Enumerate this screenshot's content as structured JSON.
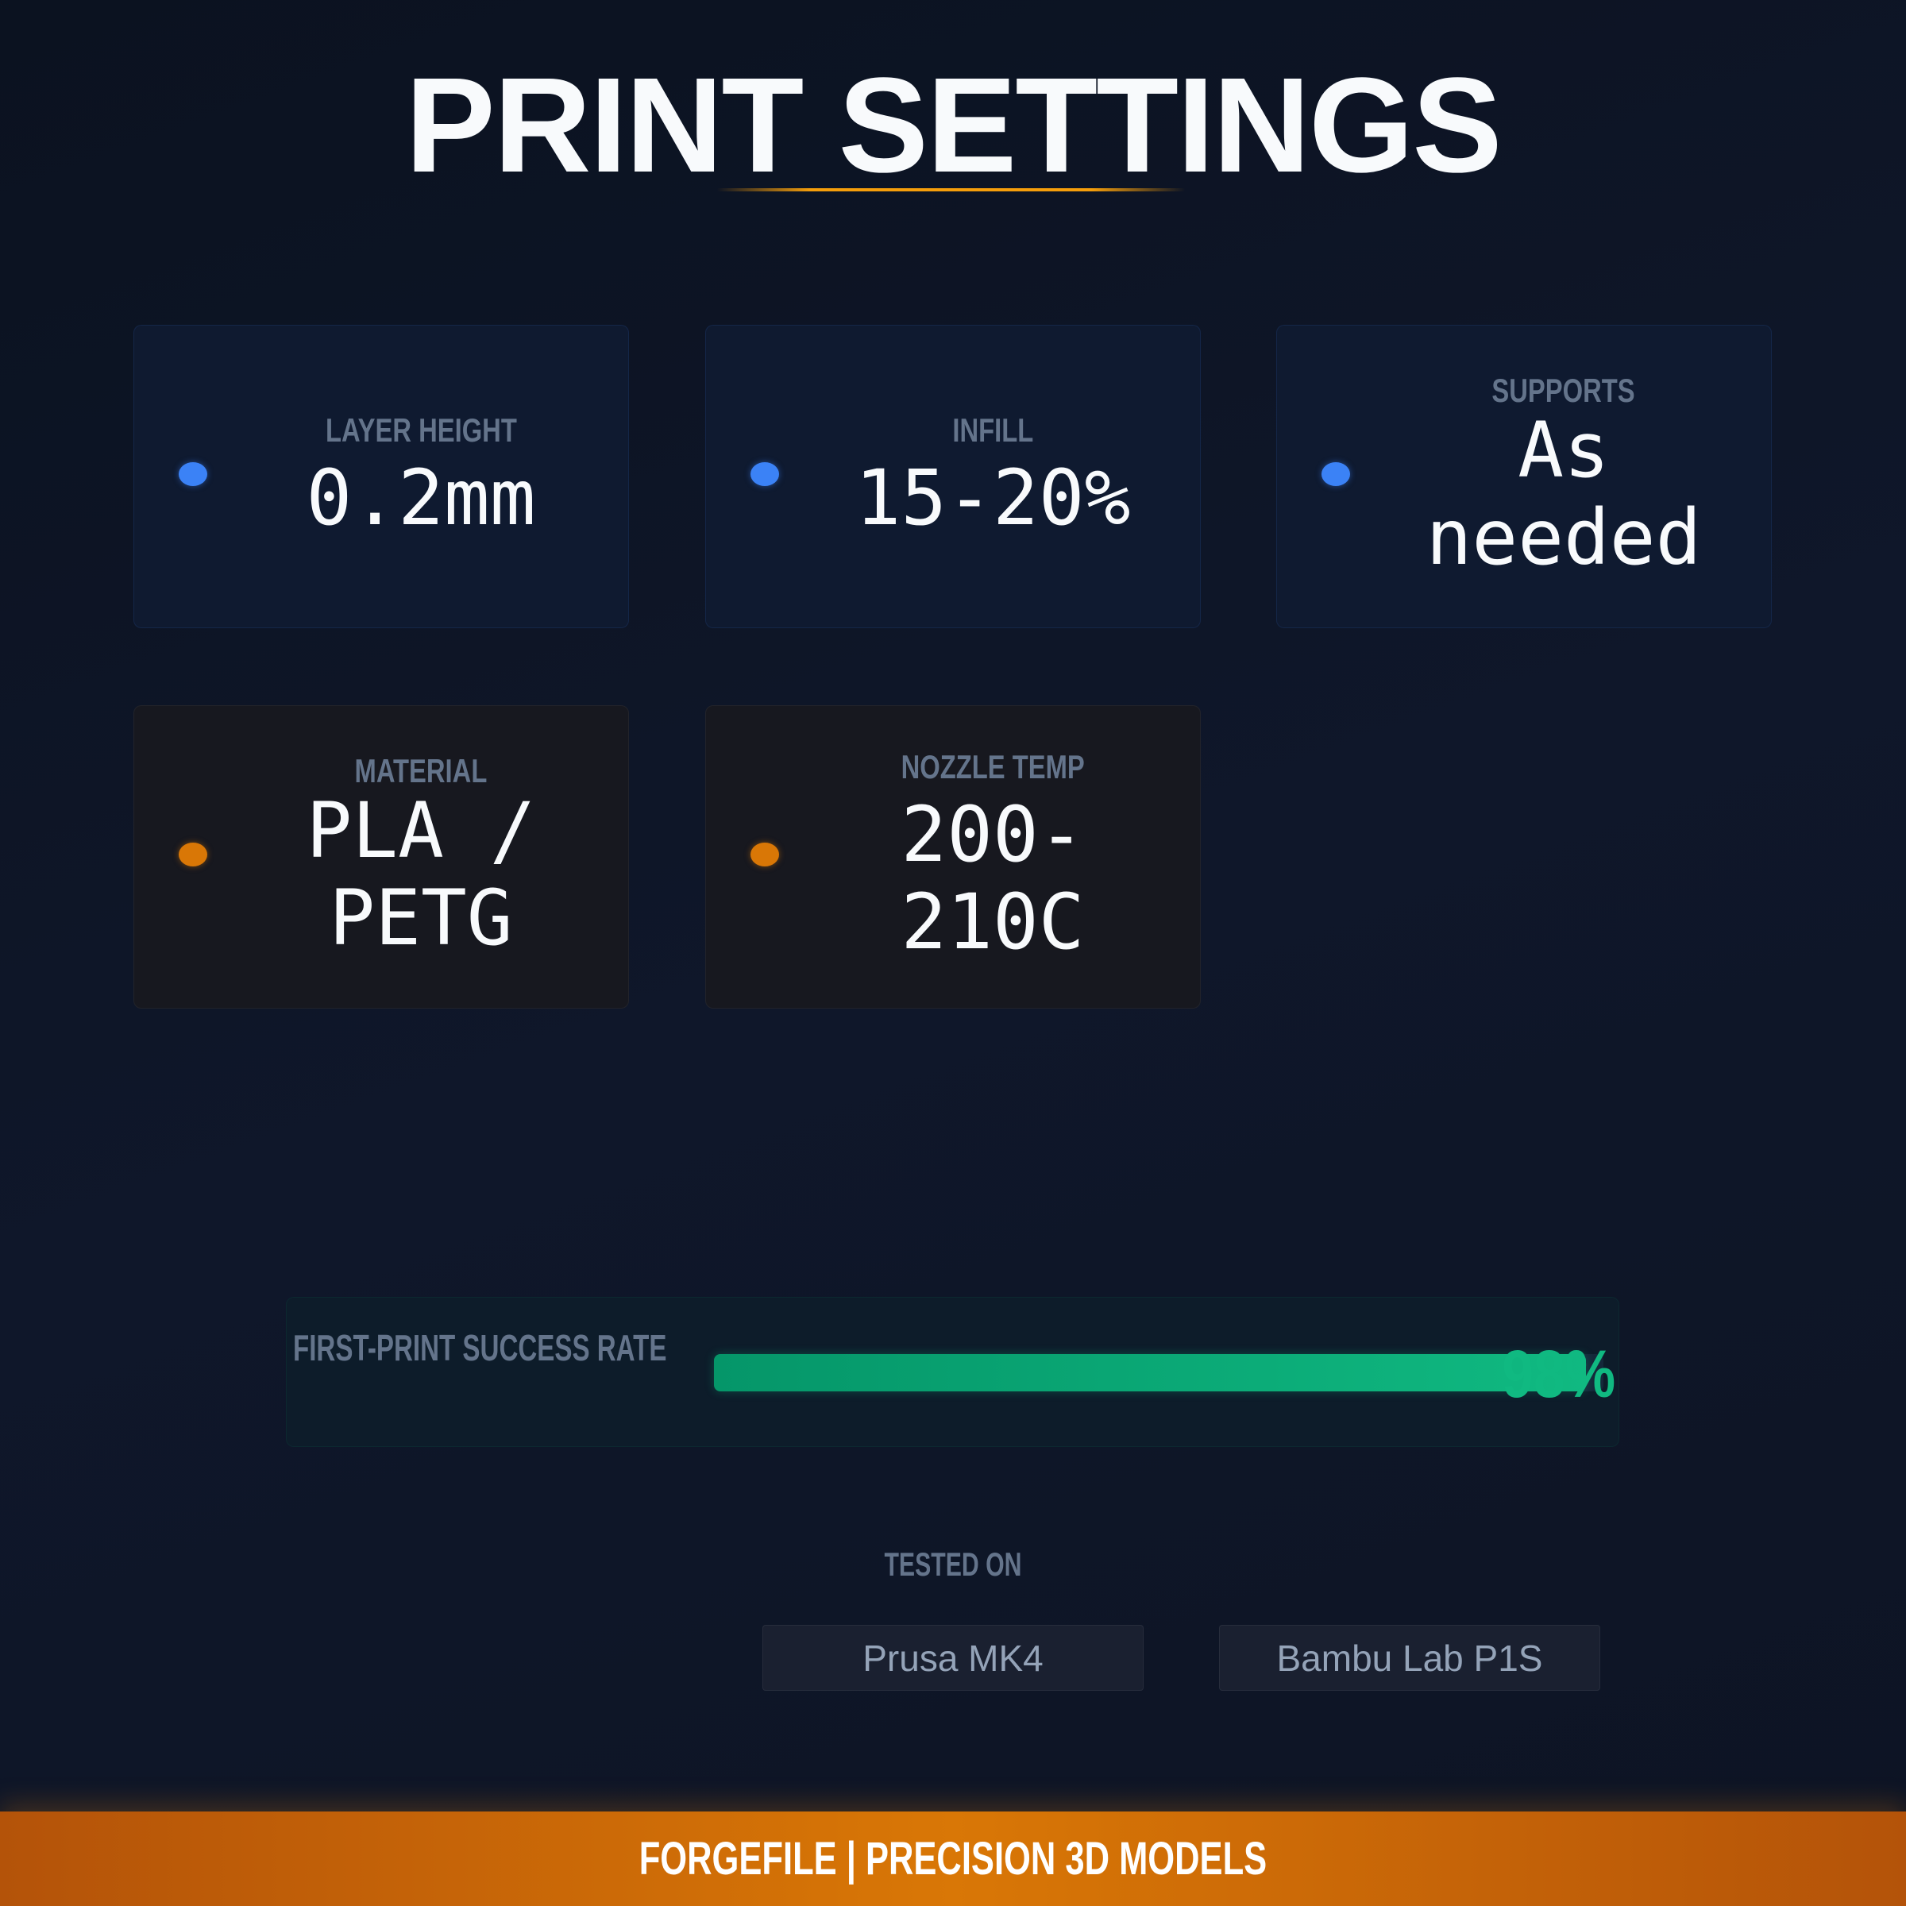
{
  "header": {
    "title": "PRINT SETTINGS"
  },
  "settings": [
    {
      "label": "LAYER HEIGHT",
      "value": "0.2mm",
      "accent": "#3b82f6"
    },
    {
      "label": "INFILL",
      "value": "15-20%",
      "accent": "#3b82f6"
    },
    {
      "label": "SUPPORTS",
      "value": "As needed",
      "accent": "#3b82f6"
    },
    {
      "label": "MATERIAL",
      "value": "PLA / PETG",
      "accent": "#d97706"
    },
    {
      "label": "NOZZLE TEMP",
      "value": "200-210C",
      "accent": "#d97706"
    }
  ],
  "success": {
    "label": "FIRST-PRINT SUCCESS RATE",
    "value_text": "98%",
    "percent": 98,
    "color": "#10b981"
  },
  "tested": {
    "label": "TESTED ON",
    "printers": [
      "Prusa MK4",
      "Bambu Lab P1S"
    ]
  },
  "footer": {
    "text": "FORGEFILE | PRECISION 3D MODELS"
  }
}
